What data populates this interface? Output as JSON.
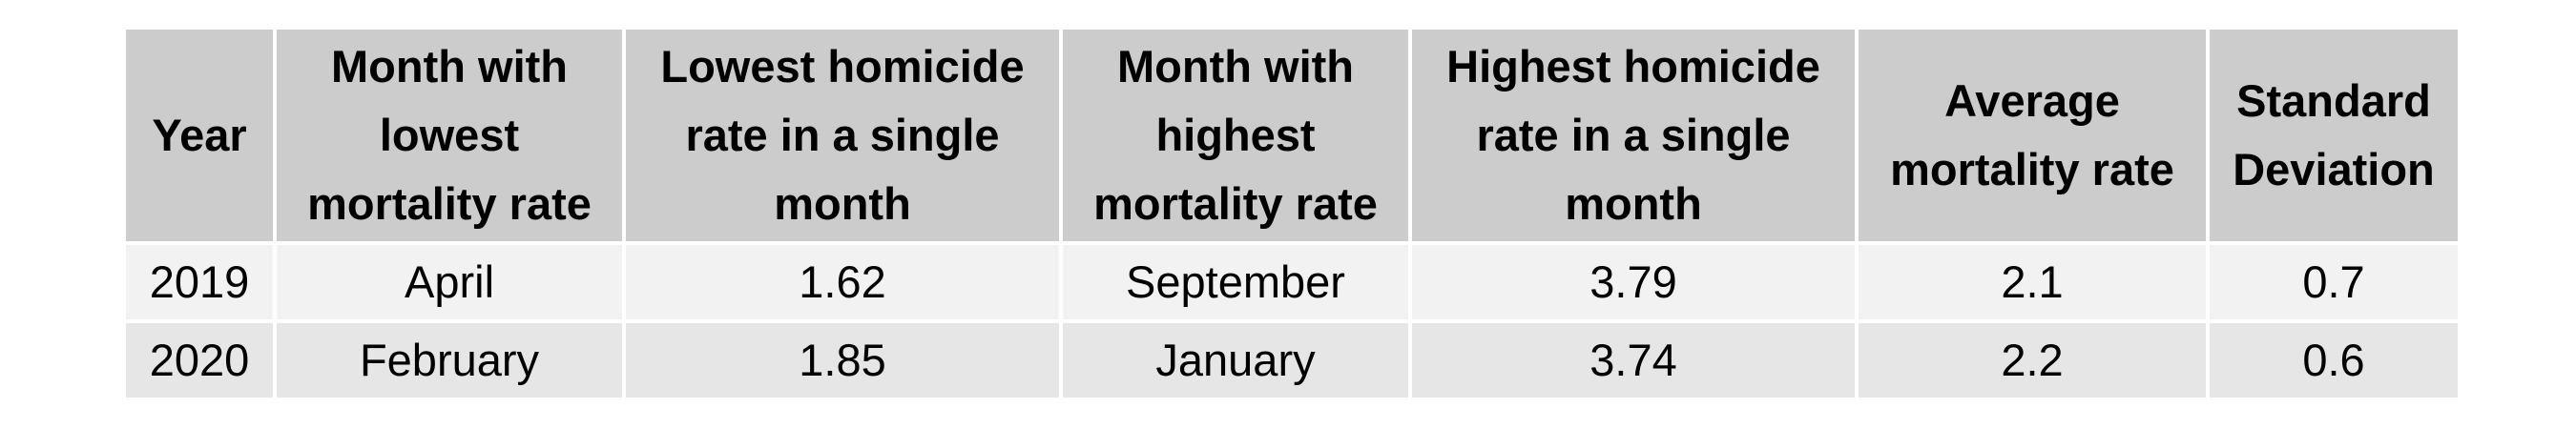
{
  "table": {
    "headers": [
      "Year",
      "Month with lowest mortality rate",
      "Lowest homicide rate in a single month",
      "Month with highest mortality rate",
      "Highest homicide rate in a single month",
      "Average mortality rate",
      "Standard Deviation"
    ],
    "rows": [
      [
        "2019",
        "April",
        "1.62",
        "September",
        "3.79",
        "2.1",
        "0.7"
      ],
      [
        "2020",
        "February",
        "1.85",
        "January",
        "3.74",
        "2.2",
        "0.6"
      ]
    ]
  },
  "colors": {
    "header_bg": "#cccccc",
    "row_odd_bg": "#f2f2f2",
    "row_even_bg": "#e6e6e6",
    "border": "#ffffff"
  }
}
